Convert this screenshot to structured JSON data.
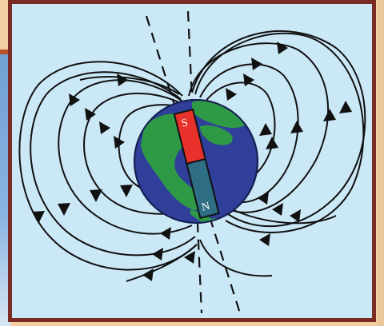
{
  "diagram": {
    "pole_south_label": "S",
    "pole_north_label": "N",
    "colors": {
      "background": "#cbe8f7",
      "frame": "#7a2a22",
      "ocean": "#2f3f9a",
      "land": "#2f9a46",
      "magnet_south": "#e8312a",
      "magnet_north": "#2e6f86",
      "field_lines": "#111111"
    },
    "icons": [
      "earth-globe",
      "bar-magnet",
      "field-line-arrows",
      "axis-dashed-lines"
    ]
  }
}
